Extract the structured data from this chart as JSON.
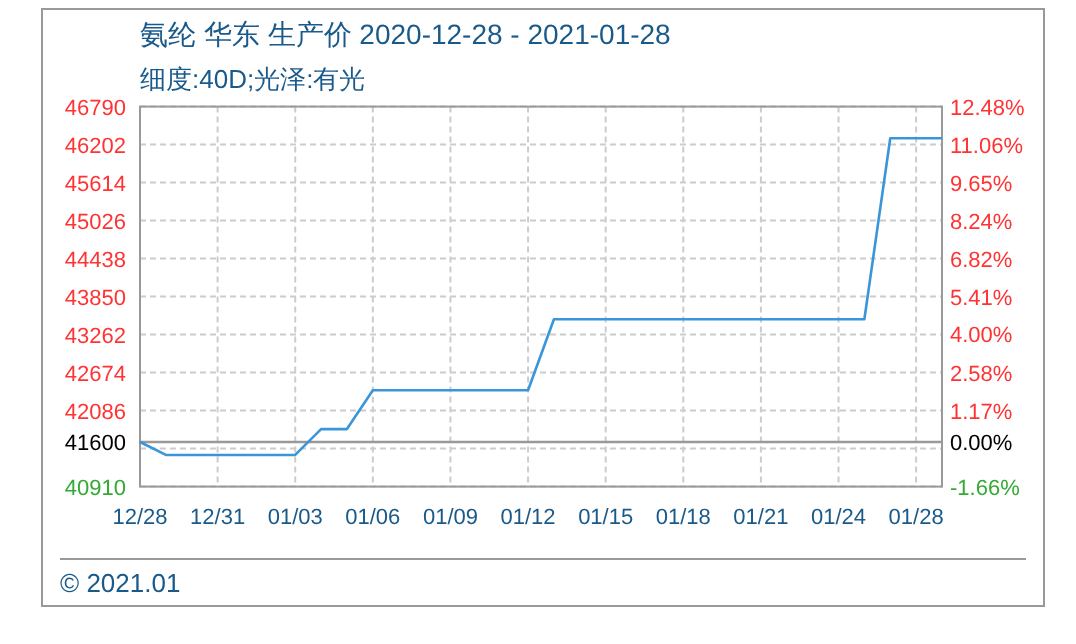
{
  "chart_data": {
    "type": "line",
    "title": "氨纶 华东 生产价 2020-12-28 - 2021-01-28",
    "subtitle": "细度:40D;光泽:有光",
    "annotations": [
      "© 2021.01"
    ],
    "x": [
      "2020-12-28",
      "2020-12-29",
      "2021-01-03",
      "2021-01-04",
      "2021-01-05",
      "2021-01-06",
      "2021-01-12",
      "2021-01-13",
      "2021-01-25",
      "2021-01-26",
      "2021-01-28"
    ],
    "series": [
      {
        "color": "#3a96d8",
        "values": [
          41600,
          41400,
          41400,
          41800,
          41800,
          42400,
          42400,
          43500,
          43500,
          46300,
          46300
        ]
      }
    ],
    "xlim": [
      "2020-12-28",
      "2021-01-28"
    ],
    "xticks": [
      {
        "value": "2020-12-28",
        "label": "12/28"
      },
      {
        "value": "2020-12-31",
        "label": "12/31"
      },
      {
        "value": "2021-01-03",
        "label": "01/03"
      },
      {
        "value": "2021-01-06",
        "label": "01/06"
      },
      {
        "value": "2021-01-09",
        "label": "01/09"
      },
      {
        "value": "2021-01-12",
        "label": "01/12"
      },
      {
        "value": "2021-01-15",
        "label": "01/15"
      },
      {
        "value": "2021-01-18",
        "label": "01/18"
      },
      {
        "value": "2021-01-21",
        "label": "01/21"
      },
      {
        "value": "2021-01-24",
        "label": "01/24"
      },
      {
        "value": "2021-01-27",
        "label": "01/28"
      }
    ],
    "ylim": [
      40910,
      46790
    ],
    "yticks": [
      46790,
      46202,
      45614,
      45026,
      44438,
      43850,
      43262,
      42674,
      42086,
      {
        "value": 41498,
        "label": null
      },
      40910
    ],
    "y2lim": [
      -1.66,
      12.48
    ],
    "y2ticks": [
      {
        "value": 12.48,
        "label": "12.48%"
      },
      {
        "value": 11.06,
        "label": "11.06%"
      },
      {
        "value": 9.65,
        "label": "9.65%"
      },
      {
        "value": 8.24,
        "label": "8.24%"
      },
      {
        "value": 6.82,
        "label": "6.82%"
      },
      {
        "value": 5.41,
        "label": "5.41%"
      },
      {
        "value": 4.0,
        "label": "4.00%"
      },
      {
        "value": 2.58,
        "label": "2.58%"
      },
      {
        "value": 1.17,
        "label": "1.17%"
      },
      {
        "value": 0,
        "label": "0.00%"
      },
      {
        "value": -1.66,
        "label": "-1.66%"
      }
    ],
    "ref_lines": [
      {
        "axis": "y",
        "value": 41600,
        "label": "41600",
        "color": "#999999"
      }
    ],
    "grid": true
  }
}
